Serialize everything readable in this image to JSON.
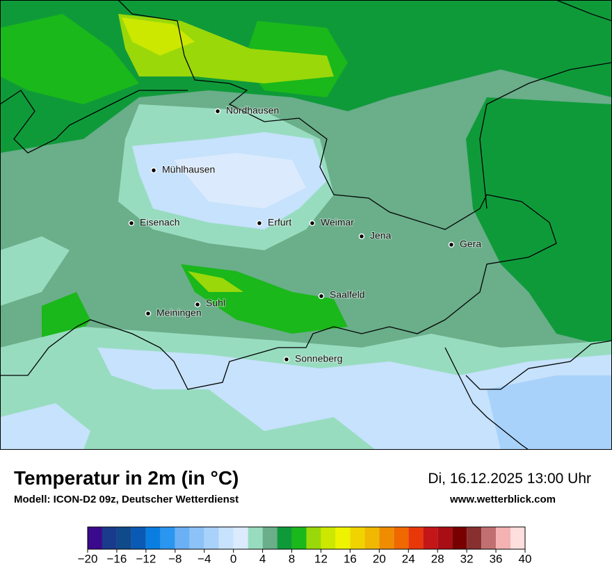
{
  "map": {
    "cities": [
      {
        "name": "Nordhausen"
      },
      {
        "name": "Mühlhausen"
      },
      {
        "name": "Eisenach"
      },
      {
        "name": "Erfurt"
      },
      {
        "name": "Weimar"
      },
      {
        "name": "Jena"
      },
      {
        "name": "Gera"
      },
      {
        "name": "Saalfeld"
      },
      {
        "name": "Suhl"
      },
      {
        "name": "Meiningen"
      },
      {
        "name": "Sonneberg"
      }
    ]
  },
  "title": "Temperatur in 2m (in °C)",
  "subtitle": "Modell: ICON-D2 09z, Deutscher Wetterdienst",
  "valid_time": "Di, 16.12.2025 13:00 Uhr",
  "website": "www.wetterblick.com",
  "legend": {
    "bins": [
      -20,
      -18,
      -16,
      -14,
      -12,
      -10,
      -8,
      -6,
      -4,
      -2,
      0,
      2,
      4,
      6,
      8,
      10,
      12,
      14,
      16,
      18,
      20,
      22,
      24,
      26,
      28,
      30,
      32,
      34,
      36,
      38,
      40
    ],
    "colors": [
      "#3b0a8c",
      "#1a3a8c",
      "#0f4a8a",
      "#0a5ab5",
      "#0a7ee0",
      "#2a96f0",
      "#6bb0f5",
      "#8cc2f8",
      "#a8d2fa",
      "#c6e2fc",
      "#dbeafd",
      "#98dcc0",
      "#6aae8a",
      "#0f9a3a",
      "#1ab81a",
      "#9ad80a",
      "#cce800",
      "#eef400",
      "#f0d400",
      "#f0b800",
      "#f08c00",
      "#f06800",
      "#e8380a",
      "#c41616",
      "#a80e14",
      "#780000",
      "#883030",
      "#c07070",
      "#f5b2b2",
      "#ffdede"
    ],
    "ticks": [
      {
        "value": -20,
        "label": "−20"
      },
      {
        "value": -16,
        "label": "−16"
      },
      {
        "value": -12,
        "label": "−12"
      },
      {
        "value": -8,
        "label": "−8"
      },
      {
        "value": -4,
        "label": "−4"
      },
      0,
      4,
      8,
      12,
      16,
      20,
      24,
      28,
      32,
      36,
      40
    ]
  }
}
